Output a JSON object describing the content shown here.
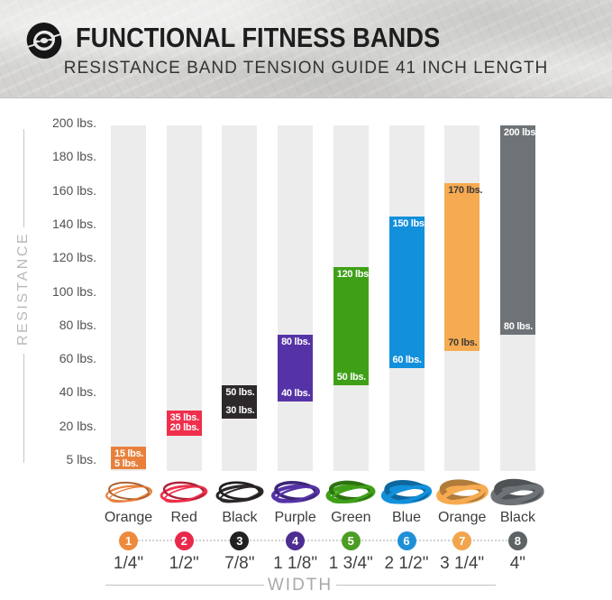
{
  "header": {
    "title": "FUNCTIONAL FITNESS BANDS",
    "subtitle": "RESISTANCE BAND TENSION GUIDE 41 INCH LENGTH",
    "logo": "swirl-logo"
  },
  "y_axis": {
    "label": "RESISTANCE",
    "ticks": [
      "200 lbs.",
      "180 lbs.",
      "160 lbs.",
      "140 lbs.",
      "120 lbs.",
      "100 lbs.",
      "80 lbs.",
      "60 lbs.",
      "40 lbs.",
      "20 lbs.",
      "5 lbs."
    ]
  },
  "x_axis": {
    "label": "WIDTH"
  },
  "colors": {
    "track": "#ECECEC",
    "header_bg": "#D8D7D5",
    "tick_text": "#525252",
    "axis_gray": "#B9B9B9"
  },
  "chart_data": {
    "type": "bar",
    "subtype": "floating-range-columns",
    "title": "FUNCTIONAL FITNESS BANDS",
    "subtitle": "RESISTANCE BAND TENSION GUIDE 41 INCH LENGTH",
    "xlabel": "WIDTH",
    "ylabel": "RESISTANCE",
    "y_ticks_lbs": [
      5,
      20,
      40,
      60,
      80,
      100,
      120,
      140,
      160,
      180,
      200
    ],
    "y_axis_note": "tick labels equally spaced; unit lbs.",
    "categories": [
      "1/4\"",
      "1/2\"",
      "7/8\"",
      "1 1/8\"",
      "1 3/4\"",
      "2 1/2\"",
      "3 1/4\"",
      "4\""
    ],
    "bands": [
      {
        "number": 1,
        "name": "Orange",
        "width_in": "1/4\"",
        "min_lbs": 5,
        "max_lbs": 15,
        "min_label": "5 lbs.",
        "max_label": "15 lbs.",
        "bar_color": "#E8803C",
        "badge_color": "#EE8A3C",
        "value_label_color": "#FFFFFF"
      },
      {
        "number": 2,
        "name": "Red",
        "width_in": "1/2\"",
        "min_lbs": 20,
        "max_lbs": 35,
        "min_label": "20 lbs.",
        "max_label": "35 lbs.",
        "bar_color": "#EF2F4B",
        "badge_color": "#E9294B",
        "value_label_color": "#FFFFFF"
      },
      {
        "number": 3,
        "name": "Black",
        "width_in": "7/8\"",
        "min_lbs": 30,
        "max_lbs": 50,
        "min_label": "30 lbs.",
        "max_label": "50 lbs.",
        "bar_color": "#2D292A",
        "badge_color": "#232021",
        "value_label_color": "#FFFFFF"
      },
      {
        "number": 4,
        "name": "Purple",
        "width_in": "1 1/8\"",
        "min_lbs": 40,
        "max_lbs": 80,
        "min_label": "40 lbs.",
        "max_label": "80 lbs.",
        "bar_color": "#5533A7",
        "badge_color": "#4E2D92",
        "value_label_color": "#FFFFFF"
      },
      {
        "number": 5,
        "name": "Green",
        "width_in": "1 3/4\"",
        "min_lbs": 50,
        "max_lbs": 120,
        "min_label": "50 lbs.",
        "max_label": "120 lbs.",
        "bar_color": "#3FA018",
        "badge_color": "#4C9D23",
        "value_label_color": "#FFFFFF"
      },
      {
        "number": 6,
        "name": "Blue",
        "width_in": "2 1/2\"",
        "min_lbs": 60,
        "max_lbs": 150,
        "min_label": "60 lbs.",
        "max_label": "150 lbs.",
        "bar_color": "#1390DB",
        "badge_color": "#1F90D8",
        "value_label_color": "#FFFFFF"
      },
      {
        "number": 7,
        "name": "Orange",
        "width_in": "3 1/4\"",
        "min_lbs": 70,
        "max_lbs": 170,
        "min_label": "70 lbs.",
        "max_label": "170 lbs.",
        "bar_color": "#F6AB51",
        "badge_color": "#F2A54D",
        "value_label_color": "#3E3A39"
      },
      {
        "number": 8,
        "name": "Black",
        "width_in": "4\"",
        "min_lbs": 80,
        "max_lbs": 200,
        "min_label": "80 lbs.",
        "max_label": "200 lbs.",
        "bar_color": "#6D7376",
        "badge_color": "#5E6366",
        "value_label_color": "#FFFFFF"
      }
    ]
  }
}
